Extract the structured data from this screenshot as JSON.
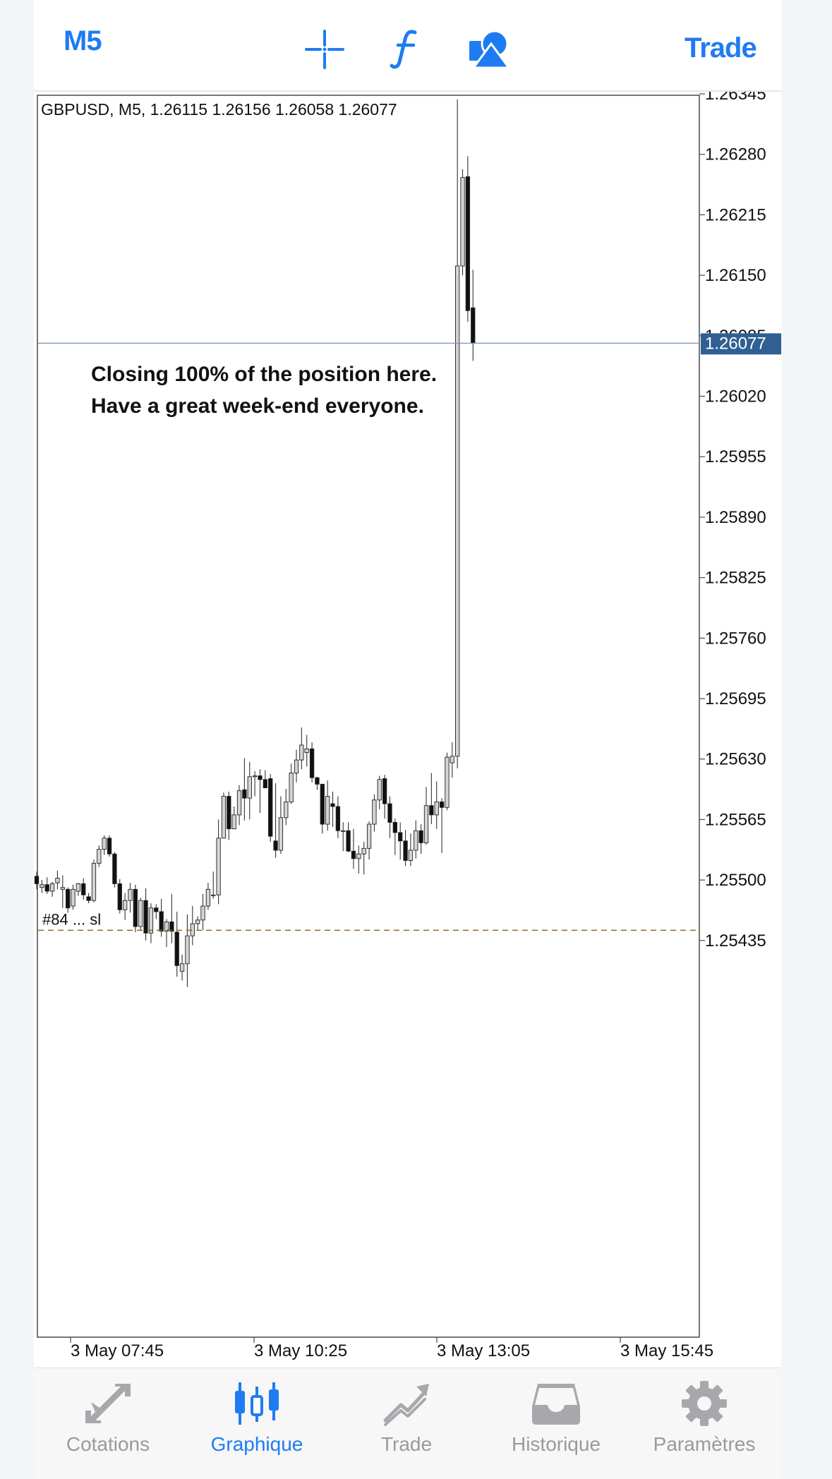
{
  "toolbar": {
    "timeframe": "M5",
    "trade_label": "Trade",
    "icons": [
      "crosshair-icon",
      "function-icon",
      "shapes-icon"
    ]
  },
  "chart_data": {
    "type": "candlestick",
    "symbol_info": "GBPUSD, M5, 1.26115 1.26156 1.26058 1.26077",
    "annotation": [
      "Closing 100% of the position here.",
      "Have a great week-end everyone."
    ],
    "current_price": "1.26077",
    "order_label": "#84 ...   sl",
    "order_level": 1.25446,
    "y_ticks": [
      "1.26345",
      "1.26280",
      "1.26215",
      "1.26150",
      "1.26085",
      "1.26020",
      "1.25955",
      "1.25890",
      "1.25825",
      "1.25760",
      "1.25695",
      "1.25630",
      "1.25565",
      "1.25500",
      "1.25435"
    ],
    "ylim": [
      1.2537,
      1.26365
    ],
    "x_ticks": [
      "3 May 07:45",
      "3 May 10:25",
      "3 May 13:05",
      "3 May 15:45"
    ],
    "grid": false,
    "candles": [
      [
        1.25504,
        1.25509,
        1.2549,
        1.25496
      ],
      [
        1.25492,
        1.255,
        1.25486,
        1.25495
      ],
      [
        1.25495,
        1.25503,
        1.25485,
        1.25488
      ],
      [
        1.25488,
        1.25498,
        1.25482,
        1.25496
      ],
      [
        1.25497,
        1.2551,
        1.2549,
        1.25502
      ],
      [
        1.2549,
        1.25505,
        1.2547,
        1.25492
      ],
      [
        1.2549,
        1.25492,
        1.25465,
        1.2547
      ],
      [
        1.25472,
        1.25495,
        1.25468,
        1.2549
      ],
      [
        1.25488,
        1.25497,
        1.25483,
        1.25496
      ],
      [
        1.25496,
        1.25502,
        1.25479,
        1.25484
      ],
      [
        1.25482,
        1.25486,
        1.25475,
        1.25478
      ],
      [
        1.25478,
        1.25522,
        1.25476,
        1.25518
      ],
      [
        1.25518,
        1.25537,
        1.25514,
        1.25533
      ],
      [
        1.25533,
        1.25548,
        1.25527,
        1.25545
      ],
      [
        1.25545,
        1.25548,
        1.25525,
        1.25528
      ],
      [
        1.25528,
        1.2553,
        1.25492,
        1.25496
      ],
      [
        1.25496,
        1.25501,
        1.25464,
        1.25468
      ],
      [
        1.25468,
        1.25486,
        1.25457,
        1.25478
      ],
      [
        1.25478,
        1.25497,
        1.25465,
        1.2549
      ],
      [
        1.2549,
        1.25495,
        1.25444,
        1.2545
      ],
      [
        1.2545,
        1.25481,
        1.25446,
        1.25478
      ],
      [
        1.25478,
        1.25491,
        1.25435,
        1.25443
      ],
      [
        1.25443,
        1.25475,
        1.25432,
        1.2547
      ],
      [
        1.2547,
        1.25474,
        1.25458,
        1.25466
      ],
      [
        1.25466,
        1.2548,
        1.25439,
        1.25445
      ],
      [
        1.25445,
        1.25458,
        1.25428,
        1.25455
      ],
      [
        1.25455,
        1.25485,
        1.25432,
        1.25445
      ],
      [
        1.25444,
        1.25466,
        1.25396,
        1.25408
      ],
      [
        1.25402,
        1.2542,
        1.25392,
        1.2541
      ],
      [
        1.2541,
        1.25463,
        1.25385,
        1.2544
      ],
      [
        1.2544,
        1.25472,
        1.2543,
        1.25453
      ],
      [
        1.25453,
        1.25461,
        1.25446,
        1.25457
      ],
      [
        1.25457,
        1.25485,
        1.25446,
        1.25472
      ],
      [
        1.25472,
        1.25497,
        1.25468,
        1.2549
      ],
      [
        1.25483,
        1.25509,
        1.2548,
        1.25484
      ],
      [
        1.25484,
        1.25565,
        1.25474,
        1.25545
      ],
      [
        1.25545,
        1.25594,
        1.25545,
        1.2559
      ],
      [
        1.2559,
        1.25595,
        1.25543,
        1.25555
      ],
      [
        1.25555,
        1.25579,
        1.25555,
        1.2557
      ],
      [
        1.2557,
        1.25602,
        1.25559,
        1.25596
      ],
      [
        1.25597,
        1.25631,
        1.25564,
        1.25588
      ],
      [
        1.25588,
        1.25627,
        1.25565,
        1.25611
      ],
      [
        1.25611,
        1.25617,
        1.2559,
        1.25612
      ],
      [
        1.25612,
        1.25619,
        1.25572,
        1.25608
      ],
      [
        1.25608,
        1.25618,
        1.25599,
        1.25599
      ],
      [
        1.25609,
        1.25614,
        1.25541,
        1.25547
      ],
      [
        1.25542,
        1.25604,
        1.25524,
        1.25532
      ],
      [
        1.25532,
        1.2559,
        1.25528,
        1.25567
      ],
      [
        1.25567,
        1.25598,
        1.25559,
        1.25584
      ],
      [
        1.25584,
        1.25625,
        1.25582,
        1.25615
      ],
      [
        1.25615,
        1.2564,
        1.25605,
        1.25629
      ],
      [
        1.25629,
        1.25664,
        1.25619,
        1.25645
      ],
      [
        1.25637,
        1.25656,
        1.25622,
        1.25641
      ],
      [
        1.25641,
        1.25648,
        1.25605,
        1.2561
      ],
      [
        1.2561,
        1.25611,
        1.25597,
        1.25603
      ],
      [
        1.25603,
        1.25603,
        1.2555,
        1.2556
      ],
      [
        1.2556,
        1.25607,
        1.25553,
        1.2559
      ],
      [
        1.25582,
        1.25595,
        1.25557,
        1.25579
      ],
      [
        1.25579,
        1.2559,
        1.25545,
        1.25553
      ],
      [
        1.25553,
        1.25562,
        1.25531,
        1.25553
      ],
      [
        1.25553,
        1.25562,
        1.2553,
        1.25531
      ],
      [
        1.25531,
        1.25555,
        1.25512,
        1.25523
      ],
      [
        1.25523,
        1.25537,
        1.25507,
        1.25528
      ],
      [
        1.25528,
        1.25541,
        1.25506,
        1.25534
      ],
      [
        1.25534,
        1.25563,
        1.25522,
        1.2556
      ],
      [
        1.2556,
        1.25592,
        1.25552,
        1.25586
      ],
      [
        1.25586,
        1.25612,
        1.25576,
        1.25608
      ],
      [
        1.25609,
        1.25613,
        1.25566,
        1.25582
      ],
      [
        1.25582,
        1.2559,
        1.25545,
        1.25562
      ],
      [
        1.25562,
        1.25566,
        1.25527,
        1.25551
      ],
      [
        1.25551,
        1.25562,
        1.25522,
        1.25542
      ],
      [
        1.25542,
        1.25554,
        1.25515,
        1.25521
      ],
      [
        1.25521,
        1.2555,
        1.25515,
        1.25532
      ],
      [
        1.25532,
        1.25564,
        1.25523,
        1.25553
      ],
      [
        1.25553,
        1.2556,
        1.25528,
        1.2554
      ],
      [
        1.2554,
        1.256,
        1.25538,
        1.2558
      ],
      [
        1.2558,
        1.25615,
        1.2556,
        1.2557
      ],
      [
        1.2557,
        1.25606,
        1.25555,
        1.25584
      ],
      [
        1.25584,
        1.25588,
        1.25529,
        1.25578
      ],
      [
        1.25578,
        1.25637,
        1.25575,
        1.25632
      ],
      [
        1.25626,
        1.25648,
        1.2561,
        1.25633
      ],
      [
        1.25633,
        1.26339,
        1.2562,
        1.2616
      ],
      [
        1.2616,
        1.26264,
        1.2615,
        1.26255
      ],
      [
        1.26256,
        1.26278,
        1.261,
        1.26112
      ],
      [
        1.26115,
        1.26156,
        1.26058,
        1.26077
      ]
    ]
  },
  "nav": [
    {
      "label": "Cotations",
      "icon": "quotes-arrows-icon",
      "active": false
    },
    {
      "label": "Graphique",
      "icon": "candlestick-chart-icon",
      "active": true
    },
    {
      "label": "Trade",
      "icon": "trade-chart-icon",
      "active": false
    },
    {
      "label": "Historique",
      "icon": "history-tray-icon",
      "active": false
    },
    {
      "label": "Paramètres",
      "icon": "settings-gear-icon",
      "active": false
    }
  ],
  "colors": {
    "accent": "#1e7cf2",
    "price_tag": "#2f5f93",
    "order_line": "#8b6b23",
    "nav_inactive": "#9a9a9e"
  }
}
